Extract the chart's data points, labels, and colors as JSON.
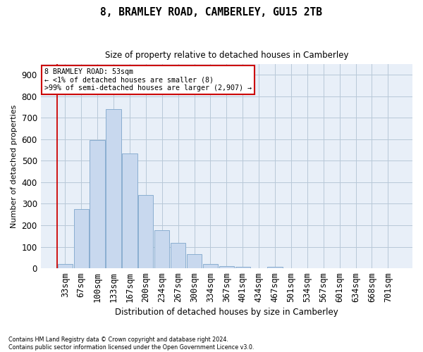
{
  "title": "8, BRAMLEY ROAD, CAMBERLEY, GU15 2TB",
  "subtitle": "Size of property relative to detached houses in Camberley",
  "xlabel": "Distribution of detached houses by size in Camberley",
  "ylabel": "Number of detached properties",
  "bar_color": "#c8d8ee",
  "bar_edge_color": "#8aaed0",
  "bg_axes": "#e8eff8",
  "grid_color": "#b8c8d8",
  "annotation_box_edge": "#cc0000",
  "annotation_line1": "8 BRAMLEY ROAD: 53sqm",
  "annotation_line2": "← <1% of detached houses are smaller (8)",
  "annotation_line3": ">99% of semi-detached houses are larger (2,907) →",
  "categories": [
    "33sqm",
    "67sqm",
    "100sqm",
    "133sqm",
    "167sqm",
    "200sqm",
    "234sqm",
    "267sqm",
    "300sqm",
    "334sqm",
    "367sqm",
    "401sqm",
    "434sqm",
    "467sqm",
    "501sqm",
    "534sqm",
    "567sqm",
    "601sqm",
    "634sqm",
    "668sqm",
    "701sqm"
  ],
  "values": [
    20,
    275,
    595,
    740,
    535,
    340,
    178,
    118,
    65,
    20,
    10,
    8,
    0,
    8,
    0,
    0,
    0,
    0,
    0,
    0,
    0
  ],
  "ylim": [
    0,
    950
  ],
  "yticks": [
    0,
    100,
    200,
    300,
    400,
    500,
    600,
    700,
    800,
    900
  ],
  "footnote1": "Contains HM Land Registry data © Crown copyright and database right 2024.",
  "footnote2": "Contains public sector information licensed under the Open Government Licence v3.0."
}
